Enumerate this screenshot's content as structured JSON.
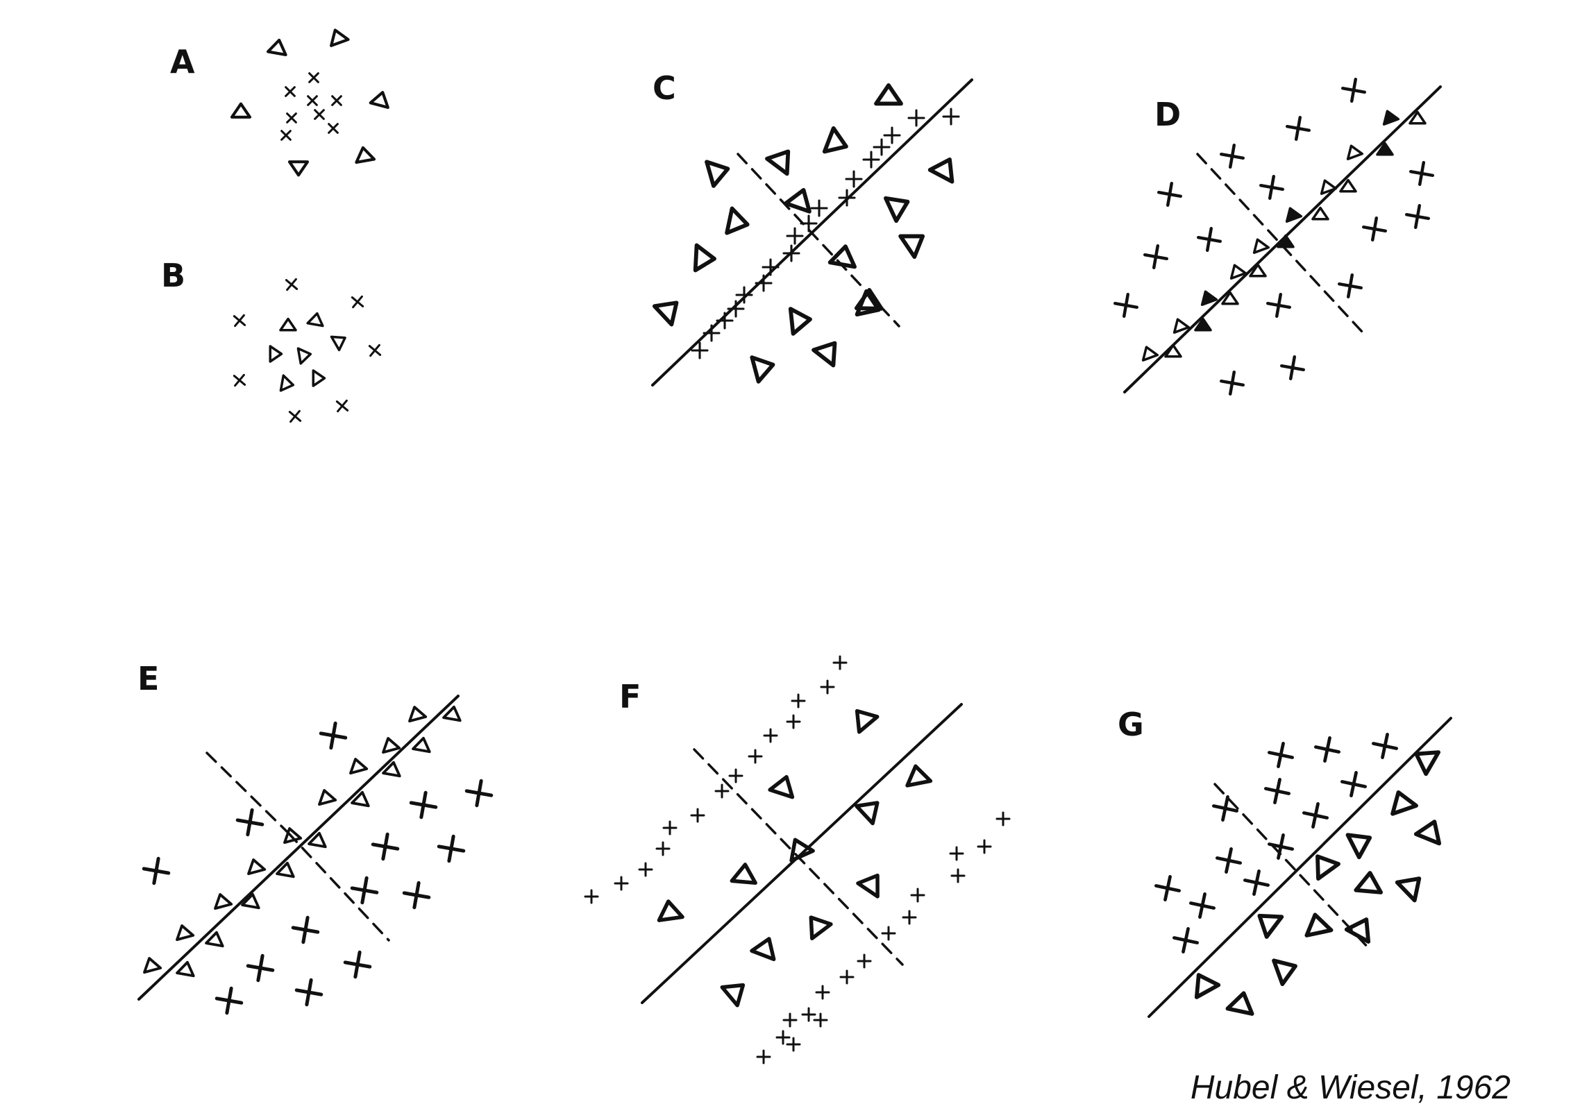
{
  "panels": [
    {
      "id": "A",
      "label": "A"
    },
    {
      "id": "B",
      "label": "B"
    },
    {
      "id": "C",
      "label": "C"
    },
    {
      "id": "D",
      "label": "D"
    },
    {
      "id": "E",
      "label": "E"
    },
    {
      "id": "F",
      "label": "F"
    },
    {
      "id": "G",
      "label": "G"
    }
  ],
  "legend_symbols": {
    "excitatory": "cross",
    "inhibitory": "triangle"
  },
  "citation": "Hubel & Wiesel, 1962",
  "colors": {
    "ink": "#111111",
    "background": "#ffffff"
  }
}
